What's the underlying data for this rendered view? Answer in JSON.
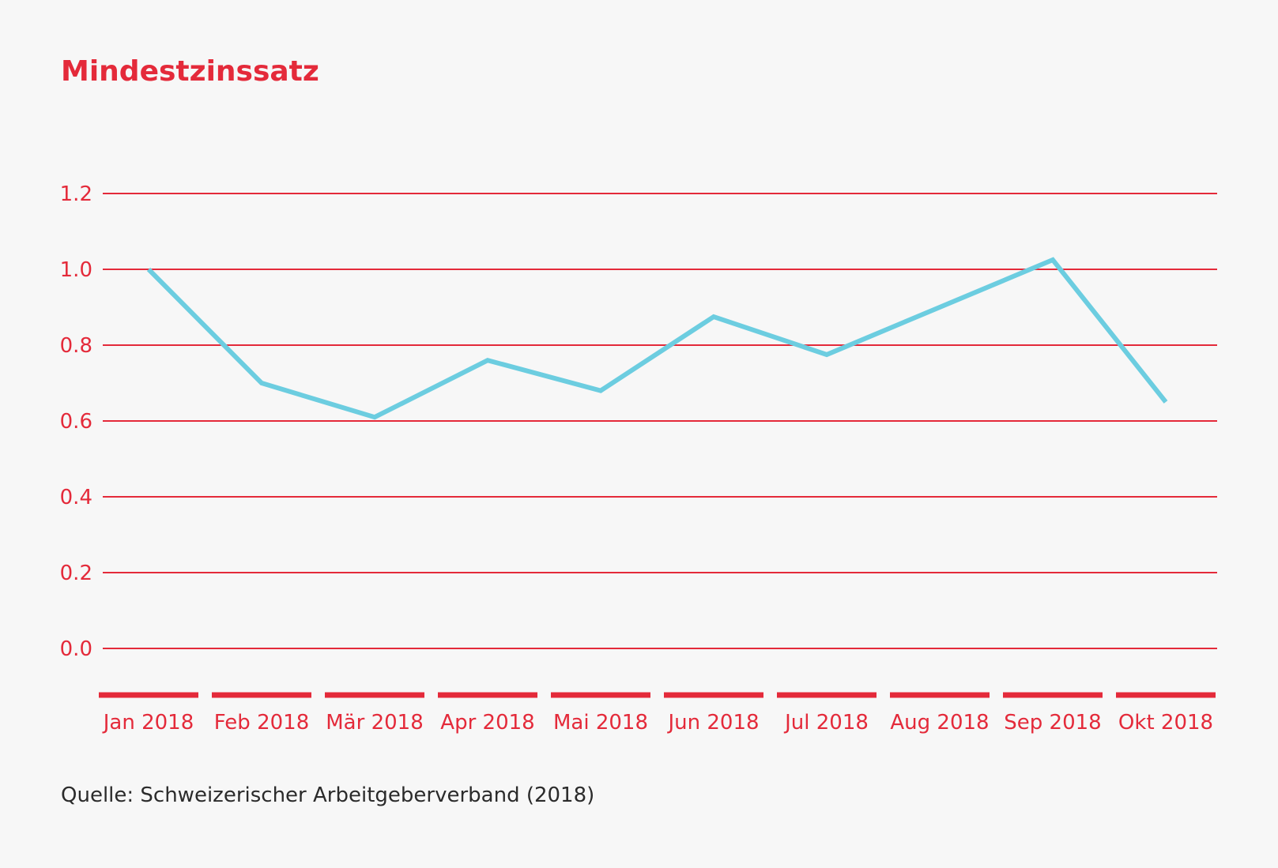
{
  "title": "Mindestzinssatz",
  "source": "Quelle: Schweizerischer Arbeitgeberverband (2018)",
  "colors": {
    "accent": "#e42a3a",
    "line": "#6ccde0",
    "background": "#f7f7f7",
    "text": "#2b2b2b"
  },
  "chart_data": {
    "type": "line",
    "title": "Mindestzinssatz",
    "xlabel": "",
    "ylabel": "",
    "categories": [
      "Jan 2018",
      "Feb 2018",
      "Mär 2018",
      "Apr 2018",
      "Mai 2018",
      "Jun 2018",
      "Jul 2018",
      "Aug 2018",
      "Sep 2018",
      "Okt 2018"
    ],
    "series": [
      {
        "values": [
          1.0,
          0.7,
          0.61,
          0.76,
          0.68,
          0.875,
          0.775,
          0.9,
          1.025,
          0.65
        ]
      }
    ],
    "ylim": [
      0.0,
      1.2
    ],
    "yticks": [
      "0.0",
      "0.2",
      "0.4",
      "0.6",
      "0.8",
      "1.0",
      "1.2"
    ],
    "grid": true,
    "legend": "none"
  }
}
